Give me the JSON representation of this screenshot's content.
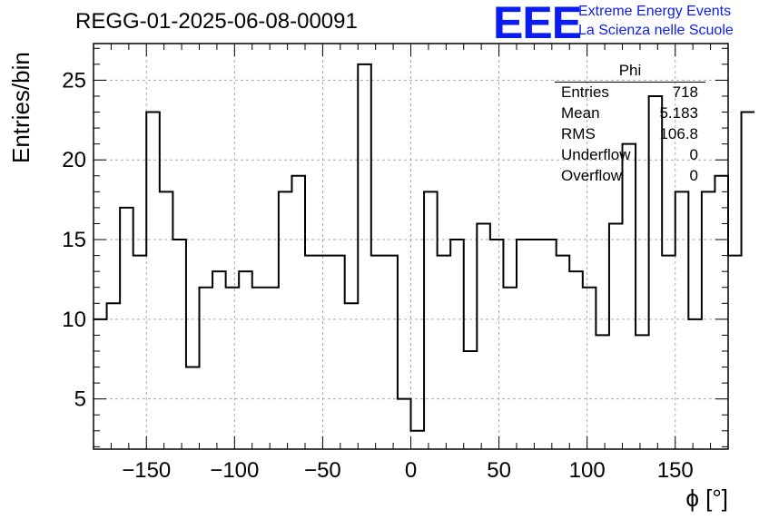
{
  "chart_data": {
    "type": "histogram",
    "title": "REGG-01-2025-06-08-00091",
    "xlabel": "ϕ [°]",
    "ylabel": "Entries/bin",
    "xlim": [
      -180,
      180
    ],
    "ylim": [
      1.85,
      27.3
    ],
    "bin_width": 7.5,
    "grid": true,
    "x_ticks": [
      -150,
      -100,
      -50,
      0,
      50,
      100,
      150
    ],
    "x_tick_labels": [
      "−150",
      "−100",
      "−50",
      "0",
      "50",
      "100",
      "150"
    ],
    "y_ticks": [
      5,
      10,
      15,
      20,
      25
    ],
    "y_tick_labels": [
      "5",
      "10",
      "15",
      "20",
      "25"
    ],
    "series": [
      {
        "values": [
          10,
          11,
          17,
          14,
          23,
          18,
          15,
          7,
          12,
          13,
          12,
          13,
          12,
          12,
          18,
          19,
          14,
          14,
          14,
          11,
          26,
          14,
          14,
          5,
          3,
          18,
          14,
          15,
          8,
          16,
          15,
          12,
          15,
          15,
          15,
          14,
          13,
          12,
          9,
          16,
          21,
          9,
          24,
          14,
          18,
          10,
          18,
          19,
          14,
          23
        ]
      }
    ]
  },
  "logo": {
    "text": "EEE",
    "line1": "Extreme Energy Events",
    "line2": "La Scienza nelle Scuole",
    "color": "#0b1cf0"
  },
  "stats": {
    "title": "Phi",
    "rows": [
      {
        "label": "Entries",
        "value": "718"
      },
      {
        "label": "Mean",
        "value": "5.183"
      },
      {
        "label": "RMS",
        "value": "106.8"
      },
      {
        "label": "Underflow",
        "value": "0"
      },
      {
        "label": "Overflow",
        "value": "0"
      }
    ]
  }
}
